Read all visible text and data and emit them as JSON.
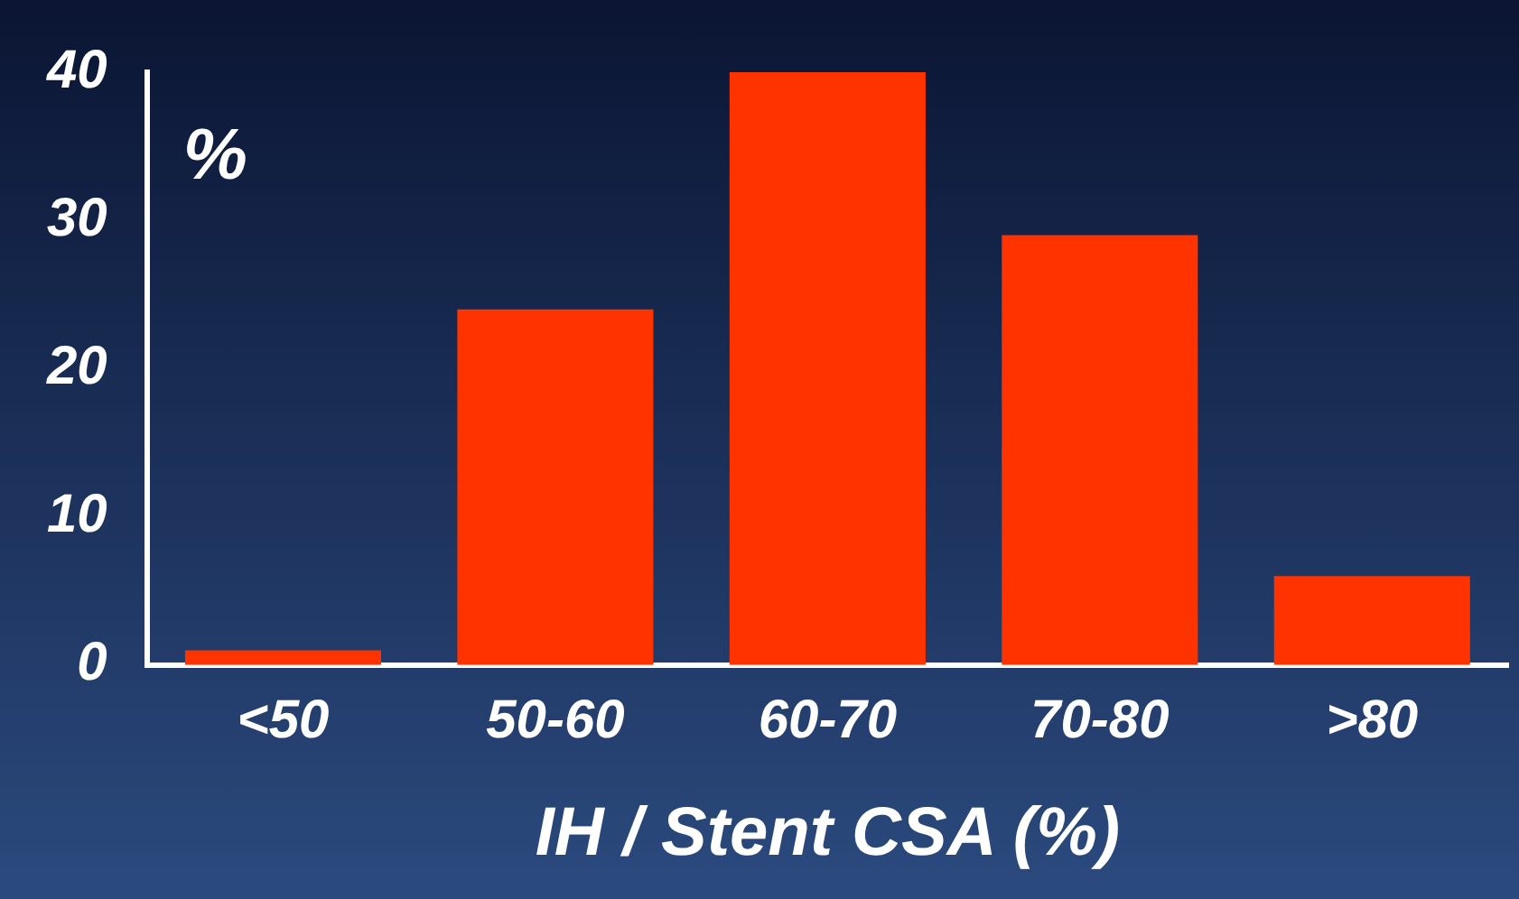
{
  "chart_data": {
    "type": "bar",
    "xlabel": "IH / Stent CSA (%)",
    "ylabel": "%",
    "categories": [
      "<50",
      "50-60",
      "60-70",
      "70-80",
      ">80"
    ],
    "values": [
      1,
      24,
      40,
      29,
      6
    ],
    "color": "#ff3300",
    "ylim": [
      0,
      40
    ],
    "yticks": [
      0,
      10,
      20,
      30,
      40
    ],
    "grid": false,
    "legend": false
  }
}
